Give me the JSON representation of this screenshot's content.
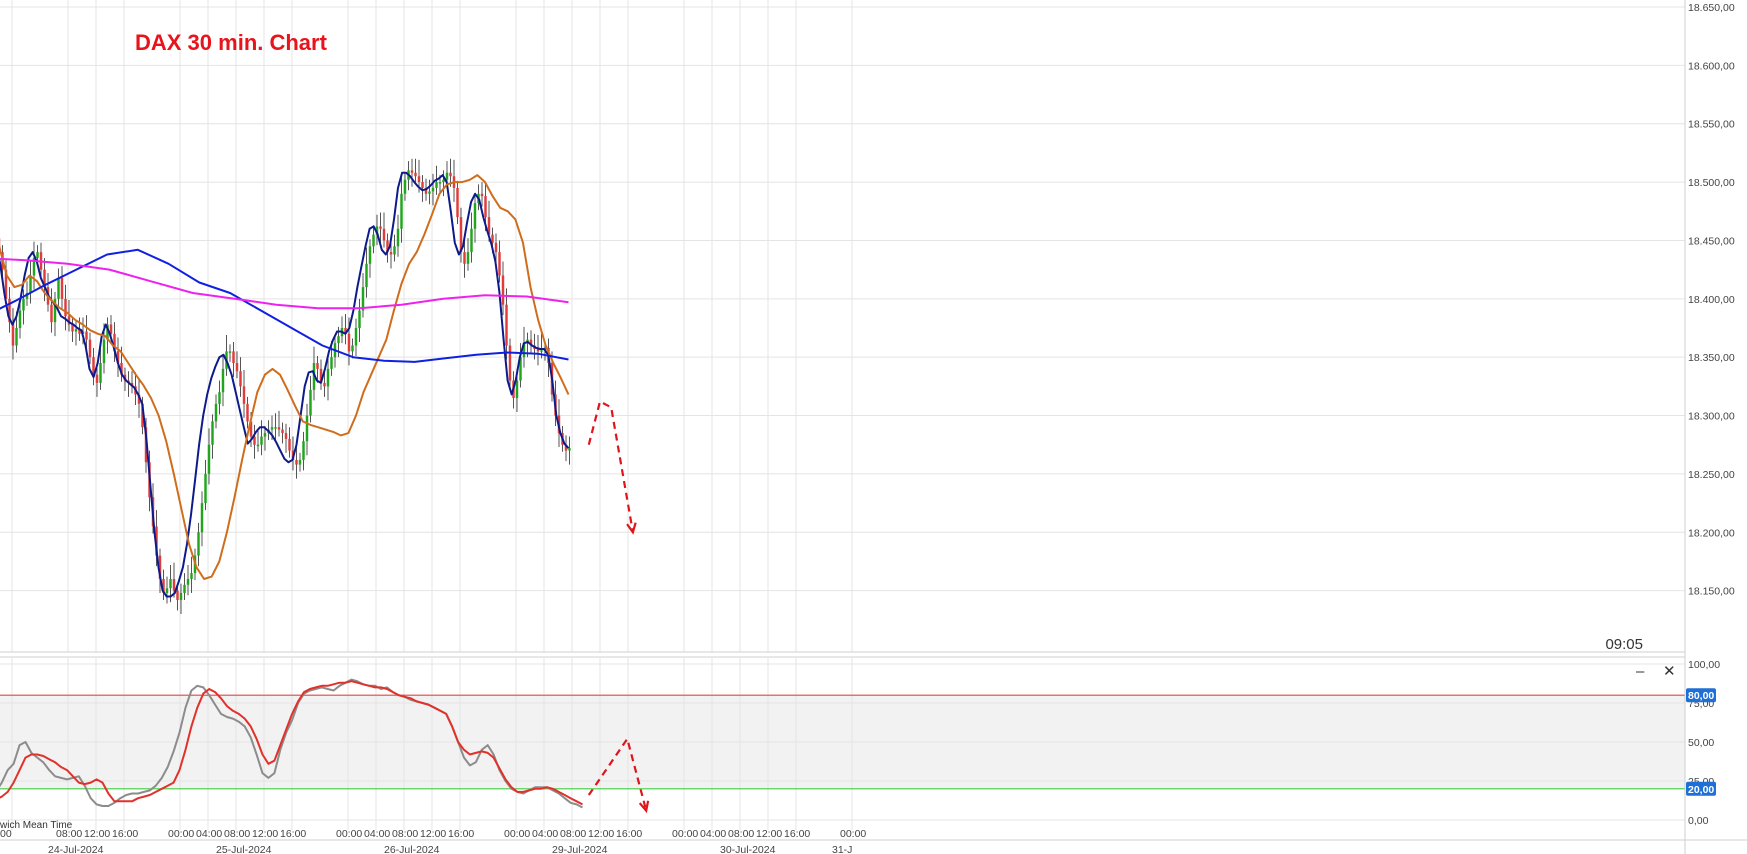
{
  "chart_title": "DAX 30 min. Chart",
  "clock": "09:05",
  "timezone_label": "wich Mean Time",
  "window_controls": {
    "minimize": "–",
    "close": "✕"
  },
  "colors": {
    "up": "#21a51d",
    "down": "#e03c3c",
    "wick": "#555555",
    "fast_ma": "#0d1a8c",
    "mid_ma": "#cf6d1d",
    "ma_long_blue": "#1020e0",
    "ma_long_magenta": "#ee22ee",
    "stoch_k": "#8c8c8c",
    "stoch_d": "#e0322a",
    "level_80": "#e04848",
    "level_20": "#3fcf3f",
    "forecast": "#e0141b",
    "badge": "#1e6fd6",
    "grid": "#e4e4e4"
  },
  "chart_data": [
    {
      "type": "candlestick",
      "title": "DAX 30 min. Chart",
      "ylim": [
        18100,
        18650
      ],
      "y_ticks": [
        "18.150,00",
        "18.200,00",
        "18.250,00",
        "18.300,00",
        "18.350,00",
        "18.400,00",
        "18.450,00",
        "18.500,00",
        "18.550,00",
        "18.600,00",
        "18.650,00"
      ],
      "y_tick_values": [
        18150,
        18200,
        18250,
        18300,
        18350,
        18400,
        18450,
        18500,
        18550,
        18600,
        18650
      ],
      "time_hours_start": -4,
      "candle_interval_hours": 0.5,
      "closes": [
        18470,
        18465,
        18460,
        18452,
        18440,
        18425,
        18400,
        18380,
        18360,
        18375,
        18390,
        18400,
        18405,
        18420,
        18435,
        18440,
        18425,
        18410,
        18395,
        18380,
        18400,
        18418,
        18400,
        18385,
        18378,
        18372,
        18374,
        18370,
        18372,
        18365,
        18350,
        18335,
        18328,
        18345,
        18365,
        18378,
        18370,
        18355,
        18345,
        18335,
        18330,
        18328,
        18325,
        18318,
        18310,
        18290,
        18260,
        18230,
        18205,
        18180,
        18160,
        18148,
        18152,
        18160,
        18150,
        18142,
        18148,
        18155,
        18160,
        18165,
        18180,
        18200,
        18225,
        18250,
        18275,
        18295,
        18310,
        18320,
        18340,
        18355,
        18355,
        18345,
        18338,
        18325,
        18310,
        18295,
        18282,
        18275,
        18275,
        18282,
        18285,
        18288,
        18290,
        18290,
        18288,
        18285,
        18280,
        18270,
        18262,
        18258,
        18262,
        18278,
        18300,
        18322,
        18345,
        18340,
        18328,
        18325,
        18340,
        18350,
        18362,
        18368,
        18375,
        18370,
        18355,
        18360,
        18375,
        18390,
        18410,
        18430,
        18445,
        18455,
        18462,
        18460,
        18450,
        18440,
        18438,
        18445,
        18460,
        18490,
        18502,
        18510,
        18508,
        18505,
        18500,
        18495,
        18490,
        18492,
        18495,
        18500,
        18500,
        18502,
        18508,
        18505,
        18495,
        18470,
        18440,
        18430,
        18440,
        18460,
        18482,
        18490,
        18488,
        18470,
        18455,
        18448,
        18440,
        18420,
        18395,
        18360,
        18330,
        18315,
        18330,
        18350,
        18362,
        18365,
        18360,
        18357,
        18355,
        18356,
        18358,
        18345,
        18318,
        18300,
        18285,
        18275,
        18270,
        18272
      ],
      "overlays": [
        {
          "name": "MA short",
          "color": "#0d1a8c",
          "values": [
            18472,
            18466,
            18458,
            18446,
            18430,
            18405,
            18385,
            18378,
            18385,
            18400,
            18420,
            18435,
            18440,
            18432,
            18418,
            18410,
            18402,
            18397,
            18392,
            18385,
            18383,
            18380,
            18378,
            18375,
            18373,
            18360,
            18340,
            18333,
            18345,
            18368,
            18378,
            18370,
            18358,
            18345,
            18335,
            18330,
            18327,
            18324,
            18318,
            18310,
            18280,
            18240,
            18200,
            18170,
            18150,
            18145,
            18145,
            18148,
            18158,
            18170,
            18190,
            18215,
            18245,
            18275,
            18300,
            18318,
            18332,
            18342,
            18350,
            18352,
            18345,
            18335,
            18320,
            18305,
            18290,
            18276,
            18280,
            18286,
            18290,
            18290,
            18287,
            18283,
            18277,
            18270,
            18263,
            18260,
            18262,
            18275,
            18300,
            18325,
            18337,
            18338,
            18330,
            18328,
            18340,
            18355,
            18365,
            18372,
            18372,
            18370,
            18375,
            18390,
            18410,
            18428,
            18445,
            18460,
            18462,
            18455,
            18442,
            18438,
            18445,
            18468,
            18495,
            18508,
            18508,
            18505,
            18500,
            18496,
            18493,
            18494,
            18497,
            18501,
            18503,
            18506,
            18500,
            18475,
            18448,
            18438,
            18445,
            18465,
            18483,
            18490,
            18485,
            18470,
            18458,
            18447,
            18432,
            18405,
            18365,
            18330,
            18318,
            18330,
            18350,
            18362,
            18363,
            18360,
            18358,
            18357,
            18357,
            18352,
            18330,
            18300,
            18285,
            18276,
            18272
          ]
        },
        {
          "name": "MA medium",
          "color": "#cf6d1d",
          "values": [
            18500,
            18470,
            18445,
            18420,
            18410,
            18412,
            18420,
            18415,
            18405,
            18398,
            18392,
            18388,
            18382,
            18378,
            18373,
            18370,
            18368,
            18360,
            18355,
            18345,
            18335,
            18326,
            18315,
            18300,
            18278,
            18250,
            18220,
            18190,
            18170,
            18160,
            18162,
            18175,
            18200,
            18230,
            18262,
            18292,
            18320,
            18335,
            18340,
            18335,
            18322,
            18308,
            18295,
            18292,
            18290,
            18288,
            18286,
            18283,
            18285,
            18300,
            18320,
            18335,
            18350,
            18365,
            18390,
            18413,
            18430,
            18440,
            18455,
            18472,
            18490,
            18498,
            18500,
            18500,
            18502,
            18506,
            18500,
            18488,
            18478,
            18475,
            18468,
            18448,
            18410,
            18382,
            18360,
            18345,
            18332,
            18318
          ]
        },
        {
          "name": "MA long 1",
          "color": "#1020e0",
          "values": [
            18385,
            18398,
            18412,
            18425,
            18438,
            18442,
            18430,
            18414,
            18405,
            18390,
            18375,
            18360,
            18350,
            18347,
            18346,
            18349,
            18352,
            18354,
            18353,
            18348
          ]
        },
        {
          "name": "MA long 2",
          "color": "#ee22ee",
          "values": [
            18435,
            18433,
            18430,
            18425,
            18415,
            18405,
            18400,
            18395,
            18392,
            18392,
            18395,
            18400,
            18403,
            18402,
            18397
          ]
        }
      ]
    },
    {
      "type": "line",
      "name": "Stochastic",
      "ylim": [
        0,
        100
      ],
      "y_ticks": [
        "0,00",
        "25,00",
        "50,00",
        "75,00",
        "100,00"
      ],
      "y_tick_values": [
        0,
        25,
        50,
        75,
        100
      ],
      "levels": [
        {
          "value": 80,
          "label": "80,00"
        },
        {
          "value": 20,
          "label": "20,00"
        }
      ],
      "series": [
        {
          "color": "#8c8c8c",
          "values": [
            15,
            16,
            18,
            24,
            32,
            36,
            48,
            50,
            43,
            40,
            37,
            32,
            28,
            27,
            26,
            27,
            28,
            22,
            14,
            10,
            9,
            9,
            11,
            14,
            16,
            17,
            17,
            18,
            19,
            22,
            27,
            34,
            44,
            56,
            72,
            83,
            86,
            85,
            80,
            74,
            68,
            66,
            65,
            63,
            60,
            53,
            42,
            30,
            27,
            30,
            45,
            56,
            64,
            75,
            81,
            83,
            84,
            85,
            84,
            83,
            86,
            88,
            90,
            89,
            87,
            86,
            86,
            84,
            85,
            82,
            80,
            79,
            77,
            76,
            75,
            74,
            72,
            70,
            68,
            60,
            50,
            40,
            35,
            37,
            45,
            48,
            42,
            32,
            25,
            20,
            18,
            17,
            19,
            21,
            21,
            21,
            19,
            17,
            14,
            11,
            10,
            8
          ]
        },
        {
          "color": "#e0322a",
          "values": [
            12,
            12,
            13,
            15,
            18,
            24,
            32,
            40,
            42,
            42,
            41,
            39,
            37,
            34,
            32,
            28,
            24,
            23,
            24,
            26,
            24,
            17,
            12,
            12,
            12,
            12,
            14,
            15,
            16,
            18,
            20,
            22,
            24,
            32,
            45,
            60,
            72,
            81,
            84,
            82,
            78,
            73,
            70,
            68,
            65,
            60,
            52,
            42,
            36,
            38,
            48,
            58,
            68,
            76,
            82,
            84,
            85,
            86,
            86,
            87,
            88,
            88,
            89,
            88,
            87,
            86,
            85,
            85,
            84,
            82,
            80,
            79,
            78,
            76,
            75,
            74,
            72,
            70,
            68,
            60,
            50,
            45,
            42,
            43,
            44,
            43,
            40,
            33,
            26,
            21,
            18,
            18,
            19,
            20,
            20,
            21,
            20,
            18,
            16,
            14,
            12,
            10
          ]
        }
      ]
    }
  ],
  "x_axis": {
    "time_ticks": [
      "00",
      "08:00",
      "12:00",
      "16:00",
      "00:00",
      "04:00",
      "08:00",
      "12:00",
      "16:00",
      "00:00",
      "04:00",
      "08:00",
      "12:00",
      "16:00",
      "00:00",
      "04:00",
      "08:00",
      "12:00",
      "16:00",
      "00:00",
      "04:00",
      "08:00",
      "12:00",
      "16:00",
      "00:00"
    ],
    "time_tick_hours": [
      0,
      8,
      12,
      16,
      24,
      28,
      32,
      36,
      40,
      48,
      52,
      56,
      60,
      64,
      72,
      76,
      80,
      84,
      88,
      96,
      100,
      104,
      108,
      112,
      120
    ],
    "date_labels": [
      "24-Jul-2024",
      "25-Jul-2024",
      "26-Jul-2024",
      "29-Jul-2024",
      "30-Jul-2024",
      "31-J"
    ],
    "date_label_hours": [
      8,
      32,
      56,
      80,
      104,
      120
    ]
  },
  "forecast": {
    "price_path": [
      [
        82.4,
        18275
      ],
      [
        84,
        18312
      ],
      [
        85.6,
        18307
      ],
      [
        88.7,
        18200
      ]
    ],
    "stoch_path": [
      [
        82.4,
        16
      ],
      [
        87.9,
        52
      ],
      [
        90.6,
        6
      ]
    ]
  }
}
